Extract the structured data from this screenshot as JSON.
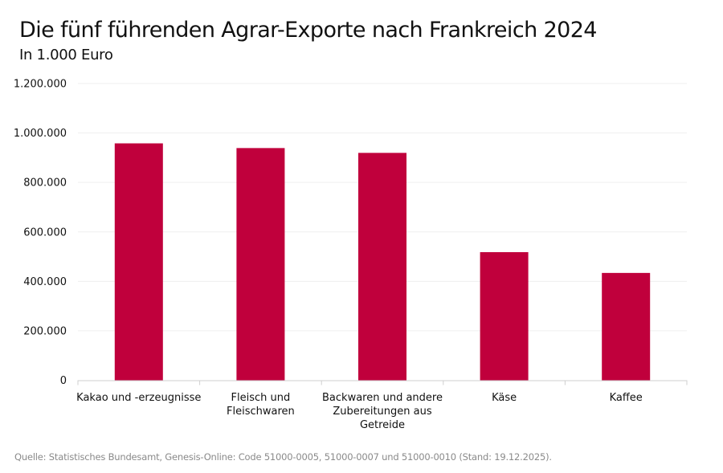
{
  "title": "Die fünf führenden Agrar-Exporte nach Frankreich 2024",
  "subtitle": "In 1.000 Euro",
  "source": "Quelle: Statistisches Bundesamt, Genesis-Online: Code 51000-0005, 51000-0007 und 51000-0010 (Stand: 19.12.2025).",
  "chart_data": {
    "type": "bar",
    "title": "Die fünf führenden Agrar-Exporte nach Frankreich 2024",
    "subtitle": "In 1.000 Euro",
    "categories": [
      [
        "Kakao und -erzeugnisse"
      ],
      [
        "Fleisch und",
        "Fleischwaren"
      ],
      [
        "Backwaren und andere",
        "Zubereitungen aus",
        "Getreide"
      ],
      [
        "Käse"
      ],
      [
        "Kaffee"
      ]
    ],
    "values": [
      958000,
      939000,
      919500,
      518000,
      434000
    ],
    "ylim": [
      0,
      1200000
    ],
    "yticks": [
      0,
      200000,
      400000,
      600000,
      800000,
      1000000,
      1200000
    ],
    "ytick_labels": [
      "0",
      "200.000",
      "400.000",
      "600.000",
      "800.000",
      "1.000.000",
      "1.200.000"
    ],
    "grid": true,
    "bar_color": "#c0003c"
  }
}
